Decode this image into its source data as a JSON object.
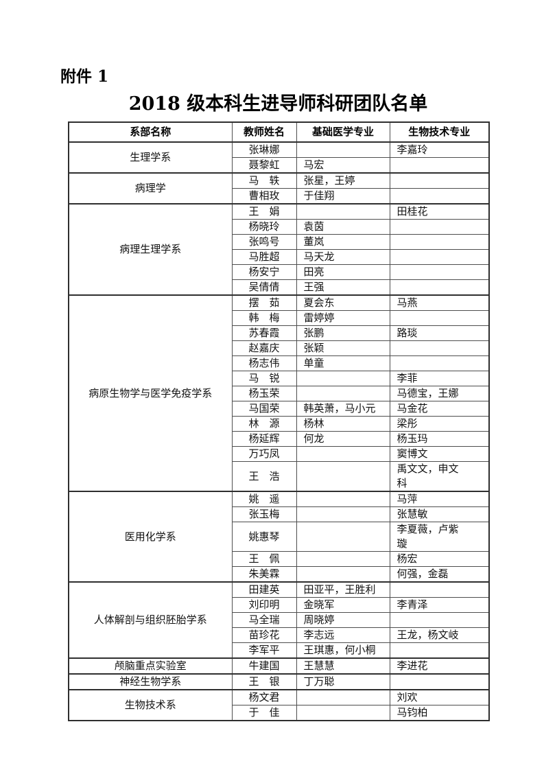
{
  "page": {
    "attachment_label": "附件 1",
    "title": "2018 级本科生进导师科研团队名单"
  },
  "table": {
    "headers": [
      "系部名称",
      "教师姓名",
      "基础医学专业",
      "生物技术专业"
    ],
    "groups": [
      {
        "department": "生理学系",
        "rows": [
          {
            "teacher": "张琳娜",
            "basic_medicine": "",
            "biotech": "李嘉玲"
          },
          {
            "teacher": "聂黎虹",
            "basic_medicine": "马宏",
            "biotech": ""
          }
        ]
      },
      {
        "department": "病理学",
        "rows": [
          {
            "teacher": "马　轶",
            "basic_medicine": "张星，王婷",
            "biotech": ""
          },
          {
            "teacher": "曹相玫",
            "basic_medicine": "于佳翔",
            "biotech": ""
          }
        ]
      },
      {
        "department": "病理生理学系",
        "rows": [
          {
            "teacher": "王　娟",
            "basic_medicine": "",
            "biotech": "田桂花"
          },
          {
            "teacher": "杨晓玲",
            "basic_medicine": "袁茵",
            "biotech": ""
          },
          {
            "teacher": "张鸣号",
            "basic_medicine": "董岚",
            "biotech": ""
          },
          {
            "teacher": "马胜超",
            "basic_medicine": "马天龙",
            "biotech": ""
          },
          {
            "teacher": "杨安宁",
            "basic_medicine": "田亮",
            "biotech": ""
          },
          {
            "teacher": "吴倩倩",
            "basic_medicine": "王强",
            "biotech": ""
          }
        ]
      },
      {
        "department": "病原生物学与医学免疫学系",
        "rows": [
          {
            "teacher": "摆　茹",
            "basic_medicine": "夏会东",
            "biotech": "马燕"
          },
          {
            "teacher": "韩　梅",
            "basic_medicine": "雷婷婷",
            "biotech": ""
          },
          {
            "teacher": "苏春霞",
            "basic_medicine": "张鹏",
            "biotech": "路琰"
          },
          {
            "teacher": "赵嘉庆",
            "basic_medicine": "张颖",
            "biotech": ""
          },
          {
            "teacher": "杨志伟",
            "basic_medicine": "单童",
            "biotech": ""
          },
          {
            "teacher": "马　锐",
            "basic_medicine": "",
            "biotech": "李菲"
          },
          {
            "teacher": "杨玉荣",
            "basic_medicine": "",
            "biotech": "马德宝，王娜"
          },
          {
            "teacher": "马国荣",
            "basic_medicine": "韩英萧，马小元",
            "biotech": "马金花"
          },
          {
            "teacher": "林　源",
            "basic_medicine": "杨林",
            "biotech": "梁彤"
          },
          {
            "teacher": "杨延辉",
            "basic_medicine": "何龙",
            "biotech": "杨玉玛"
          },
          {
            "teacher": "万巧凤",
            "basic_medicine": "",
            "biotech": "窦博文"
          },
          {
            "teacher": "王　浩",
            "basic_medicine": "",
            "biotech": "禹文文，申文科"
          }
        ]
      },
      {
        "department": "医用化学系",
        "rows": [
          {
            "teacher": "姚　遥",
            "basic_medicine": "",
            "biotech": "马萍"
          },
          {
            "teacher": "张玉梅",
            "basic_medicine": "",
            "biotech": "张慧敏"
          },
          {
            "teacher": "姚惠琴",
            "basic_medicine": "",
            "biotech": "李夏薇，卢紫璇"
          },
          {
            "teacher": "王　佩",
            "basic_medicine": "",
            "biotech": "杨宏"
          },
          {
            "teacher": "朱美霖",
            "basic_medicine": "",
            "biotech": "何强，金磊"
          }
        ]
      },
      {
        "department": "人体解剖与组织胚胎学系",
        "rows": [
          {
            "teacher": "田建英",
            "basic_medicine": "田亚平，王胜利",
            "biotech": ""
          },
          {
            "teacher": "刘印明",
            "basic_medicine": "金晓军",
            "biotech": "李青泽"
          },
          {
            "teacher": "马全瑞",
            "basic_medicine": "周晓婷",
            "biotech": ""
          },
          {
            "teacher": "苗珍花",
            "basic_medicine": "李志远",
            "biotech": "王龙，杨文岐"
          },
          {
            "teacher": "李军平",
            "basic_medicine": "王琪惠，何小桐",
            "biotech": ""
          }
        ]
      },
      {
        "department": "颅脑重点实验室",
        "rows": [
          {
            "teacher": "牛建国",
            "basic_medicine": "王慧慧",
            "biotech": "李进花"
          }
        ]
      },
      {
        "department": "神经生物学系",
        "rows": [
          {
            "teacher": "王　银",
            "basic_medicine": "丁万聪",
            "biotech": ""
          }
        ]
      },
      {
        "department": "生物技术系",
        "rows": [
          {
            "teacher": "杨文君",
            "basic_medicine": "",
            "biotech": "刘欢"
          },
          {
            "teacher": "于　佳",
            "basic_medicine": "",
            "biotech": "马钧柏"
          }
        ]
      }
    ]
  }
}
